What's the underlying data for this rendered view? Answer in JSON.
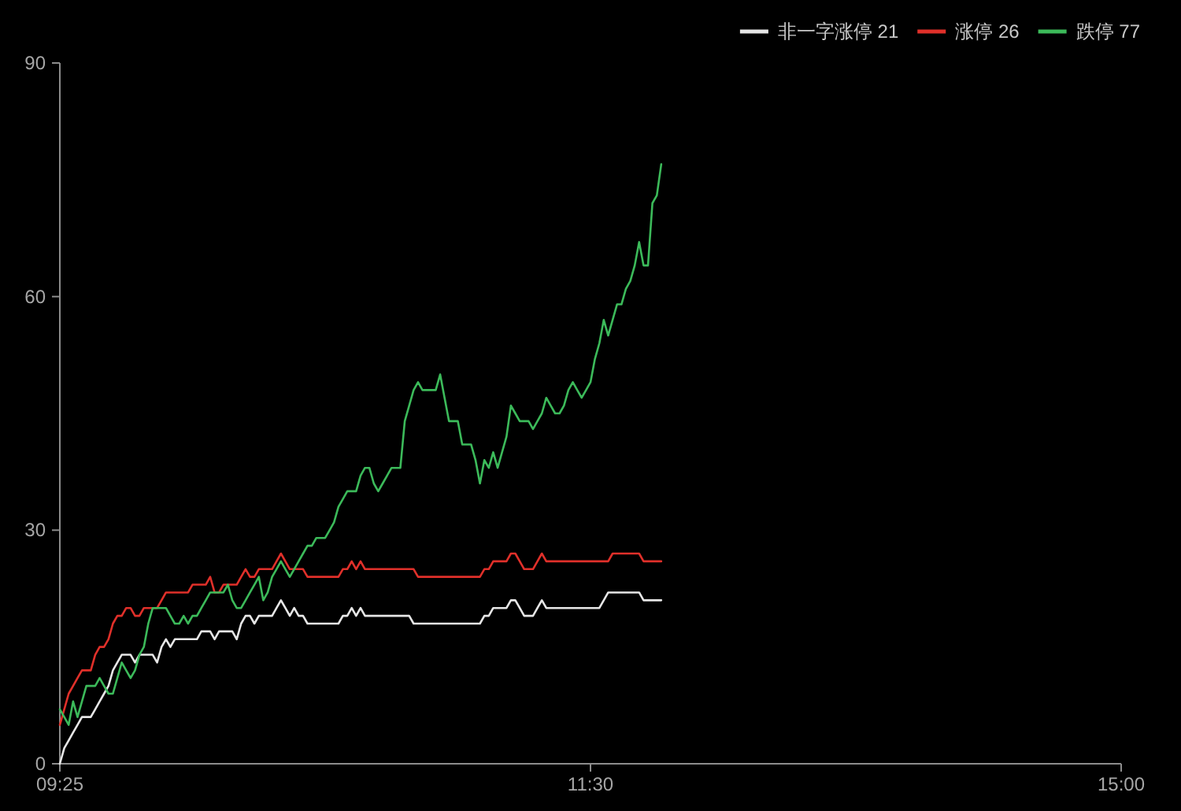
{
  "chart_data": {
    "type": "line",
    "categories": [
      "09:25",
      null,
      null,
      null,
      null,
      null,
      null,
      null,
      null,
      null,
      null,
      null,
      null,
      null,
      null,
      null,
      null,
      null,
      null,
      null,
      null,
      null,
      null,
      null,
      null,
      null,
      null,
      null,
      null,
      null,
      null,
      null,
      null,
      null,
      null,
      null,
      null,
      null,
      null,
      null,
      null,
      null,
      null,
      null,
      null,
      null,
      null,
      null,
      null,
      null,
      null,
      null,
      null,
      null,
      null,
      null,
      null,
      null,
      null,
      null,
      null,
      null,
      null,
      null,
      null,
      null,
      null,
      null,
      null,
      null,
      null,
      null,
      null,
      null,
      null,
      null,
      null,
      null,
      null,
      null,
      null,
      null,
      null,
      null,
      null,
      null,
      null,
      null,
      null,
      null,
      null,
      null,
      null,
      null,
      null,
      null,
      null,
      null,
      null,
      null,
      null,
      null,
      null,
      null,
      null,
      null,
      null,
      null,
      null,
      null,
      null,
      null,
      null,
      null,
      null,
      null,
      null,
      null,
      null,
      null,
      "11:30",
      null,
      null,
      null,
      null,
      null,
      null,
      null,
      null,
      null,
      null,
      null,
      null,
      null,
      null,
      null,
      null,
      null,
      null,
      null,
      null,
      null,
      null,
      null,
      null,
      null,
      null,
      null,
      null,
      null,
      null,
      null,
      null,
      null,
      null,
      null,
      null,
      null,
      null,
      null,
      null,
      null,
      null,
      null,
      null,
      null,
      null,
      null,
      null,
      null,
      null,
      null,
      null,
      null,
      null,
      null,
      null,
      null,
      null,
      null,
      null,
      null,
      null,
      null,
      null,
      null,
      null,
      null,
      null,
      null,
      null,
      null,
      null,
      null,
      null,
      null,
      null,
      null,
      null,
      null,
      null,
      null,
      null,
      null,
      null,
      null,
      null,
      null,
      null,
      null,
      null,
      null,
      null,
      null,
      null,
      null,
      null,
      null,
      null,
      null,
      null,
      null,
      null,
      null,
      null,
      null,
      null,
      null,
      null,
      null,
      null,
      null,
      null,
      null,
      null,
      null,
      null,
      null,
      null,
      null,
      "15:00"
    ],
    "series": [
      {
        "name": "非一字涨停 21",
        "color": "#e6e6e6",
        "values": [
          0,
          2,
          3,
          4,
          5,
          6,
          6,
          6,
          7,
          8,
          9,
          10,
          12,
          13,
          14,
          14,
          14,
          13,
          14,
          14,
          14,
          14,
          13,
          15,
          16,
          15,
          16,
          16,
          16,
          16,
          16,
          16,
          17,
          17,
          17,
          16,
          17,
          17,
          17,
          17,
          16,
          18,
          19,
          19,
          18,
          19,
          19,
          19,
          19,
          20,
          21,
          20,
          19,
          20,
          19,
          19,
          18,
          18,
          18,
          18,
          18,
          18,
          18,
          18,
          19,
          19,
          20,
          19,
          20,
          19,
          19,
          19,
          19,
          19,
          19,
          19,
          19,
          19,
          19,
          19,
          18,
          18,
          18,
          18,
          18,
          18,
          18,
          18,
          18,
          18,
          18,
          18,
          18,
          18,
          18,
          18,
          19,
          19,
          20,
          20,
          20,
          20,
          21,
          21,
          20,
          19,
          19,
          19,
          20,
          21,
          20,
          20,
          20,
          20,
          20,
          20,
          20,
          20,
          20,
          20,
          20,
          20,
          20,
          21,
          22,
          22,
          22,
          22,
          22,
          22,
          22,
          22,
          21,
          21,
          21,
          21,
          21,
          null,
          null,
          null,
          null,
          null,
          null,
          null,
          null,
          null,
          null,
          null,
          null,
          null,
          null,
          null,
          null,
          null,
          null,
          null,
          null,
          null,
          null,
          null,
          null,
          null,
          null,
          null,
          null,
          null,
          null,
          null,
          null,
          null,
          null,
          null,
          null,
          null,
          null,
          null,
          null,
          null,
          null,
          null,
          null,
          null,
          null,
          null,
          null,
          null,
          null,
          null,
          null,
          null,
          null,
          null,
          null,
          null,
          null,
          null,
          null,
          null,
          null,
          null,
          null,
          null,
          null,
          null,
          null,
          null,
          null,
          null,
          null,
          null,
          null,
          null,
          null,
          null,
          null,
          null,
          null,
          null,
          null,
          null,
          null,
          null,
          null,
          null,
          null,
          null,
          null,
          null,
          null,
          null,
          null,
          null,
          null,
          null,
          null,
          null,
          null,
          null,
          null,
          null,
          null
        ]
      },
      {
        "name": "涨停 26",
        "color": "#e0302a",
        "values": [
          5,
          7,
          9,
          10,
          11,
          12,
          12,
          12,
          14,
          15,
          15,
          16,
          18,
          19,
          19,
          20,
          20,
          19,
          19,
          20,
          20,
          20,
          20,
          21,
          22,
          22,
          22,
          22,
          22,
          22,
          23,
          23,
          23,
          23,
          24,
          22,
          22,
          23,
          23,
          23,
          23,
          24,
          25,
          24,
          24,
          25,
          25,
          25,
          25,
          26,
          27,
          26,
          25,
          25,
          25,
          25,
          24,
          24,
          24,
          24,
          24,
          24,
          24,
          24,
          25,
          25,
          26,
          25,
          26,
          25,
          25,
          25,
          25,
          25,
          25,
          25,
          25,
          25,
          25,
          25,
          25,
          24,
          24,
          24,
          24,
          24,
          24,
          24,
          24,
          24,
          24,
          24,
          24,
          24,
          24,
          24,
          25,
          25,
          26,
          26,
          26,
          26,
          27,
          27,
          26,
          25,
          25,
          25,
          26,
          27,
          26,
          26,
          26,
          26,
          26,
          26,
          26,
          26,
          26,
          26,
          26,
          26,
          26,
          26,
          26,
          27,
          27,
          27,
          27,
          27,
          27,
          27,
          26,
          26,
          26,
          26,
          26,
          null,
          null,
          null,
          null,
          null,
          null,
          null,
          null,
          null,
          null,
          null,
          null,
          null,
          null,
          null,
          null,
          null,
          null,
          null,
          null,
          null,
          null,
          null,
          null,
          null,
          null,
          null,
          null,
          null,
          null,
          null,
          null,
          null,
          null,
          null,
          null,
          null,
          null,
          null,
          null,
          null,
          null,
          null,
          null,
          null,
          null,
          null,
          null,
          null,
          null,
          null,
          null,
          null,
          null,
          null,
          null,
          null,
          null,
          null,
          null,
          null,
          null,
          null,
          null,
          null,
          null,
          null,
          null,
          null,
          null,
          null,
          null,
          null,
          null,
          null,
          null,
          null,
          null,
          null,
          null,
          null,
          null,
          null,
          null,
          null,
          null,
          null,
          null,
          null,
          null,
          null,
          null,
          null,
          null,
          null,
          null,
          null,
          null,
          null,
          null,
          null,
          null,
          null,
          null
        ]
      },
      {
        "name": "跌停 77",
        "color": "#3cba5a",
        "values": [
          7,
          6,
          5,
          8,
          6,
          8,
          10,
          10,
          10,
          11,
          10,
          9,
          9,
          11,
          13,
          12,
          11,
          12,
          14,
          15,
          18,
          20,
          20,
          20,
          20,
          19,
          18,
          18,
          19,
          18,
          19,
          19,
          20,
          21,
          22,
          22,
          22,
          22,
          23,
          21,
          20,
          20,
          21,
          22,
          23,
          24,
          21,
          22,
          24,
          25,
          26,
          25,
          24,
          25,
          26,
          27,
          28,
          28,
          29,
          29,
          29,
          30,
          31,
          33,
          34,
          35,
          35,
          35,
          37,
          38,
          38,
          36,
          35,
          36,
          37,
          38,
          38,
          38,
          44,
          46,
          48,
          49,
          48,
          48,
          48,
          48,
          50,
          47,
          44,
          44,
          44,
          41,
          41,
          41,
          39,
          36,
          39,
          38,
          40,
          38,
          40,
          42,
          46,
          45,
          44,
          44,
          44,
          43,
          44,
          45,
          47,
          46,
          45,
          45,
          46,
          48,
          49,
          48,
          47,
          48,
          49,
          52,
          54,
          57,
          55,
          57,
          59,
          59,
          61,
          62,
          64,
          67,
          64,
          64,
          72,
          73,
          77,
          null,
          null,
          null,
          null,
          null,
          null,
          null,
          null,
          null,
          null,
          null,
          null,
          null,
          null,
          null,
          null,
          null,
          null,
          null,
          null,
          null,
          null,
          null,
          null,
          null,
          null,
          null,
          null,
          null,
          null,
          null,
          null,
          null,
          null,
          null,
          null,
          null,
          null,
          null,
          null,
          null,
          null,
          null,
          null,
          null,
          null,
          null,
          null,
          null,
          null,
          null,
          null,
          null,
          null,
          null,
          null,
          null,
          null,
          null,
          null,
          null,
          null,
          null,
          null,
          null,
          null,
          null,
          null,
          null,
          null,
          null,
          null,
          null,
          null,
          null,
          null,
          null,
          null,
          null,
          null,
          null,
          null,
          null,
          null,
          null,
          null,
          null,
          null,
          null,
          null,
          null,
          null,
          null,
          null,
          null,
          null,
          null,
          null,
          null,
          null,
          null,
          null,
          null,
          null
        ]
      }
    ],
    "ylim": [
      0,
      90
    ],
    "yticks": [
      0,
      30,
      60,
      90
    ],
    "legend": "top right"
  }
}
